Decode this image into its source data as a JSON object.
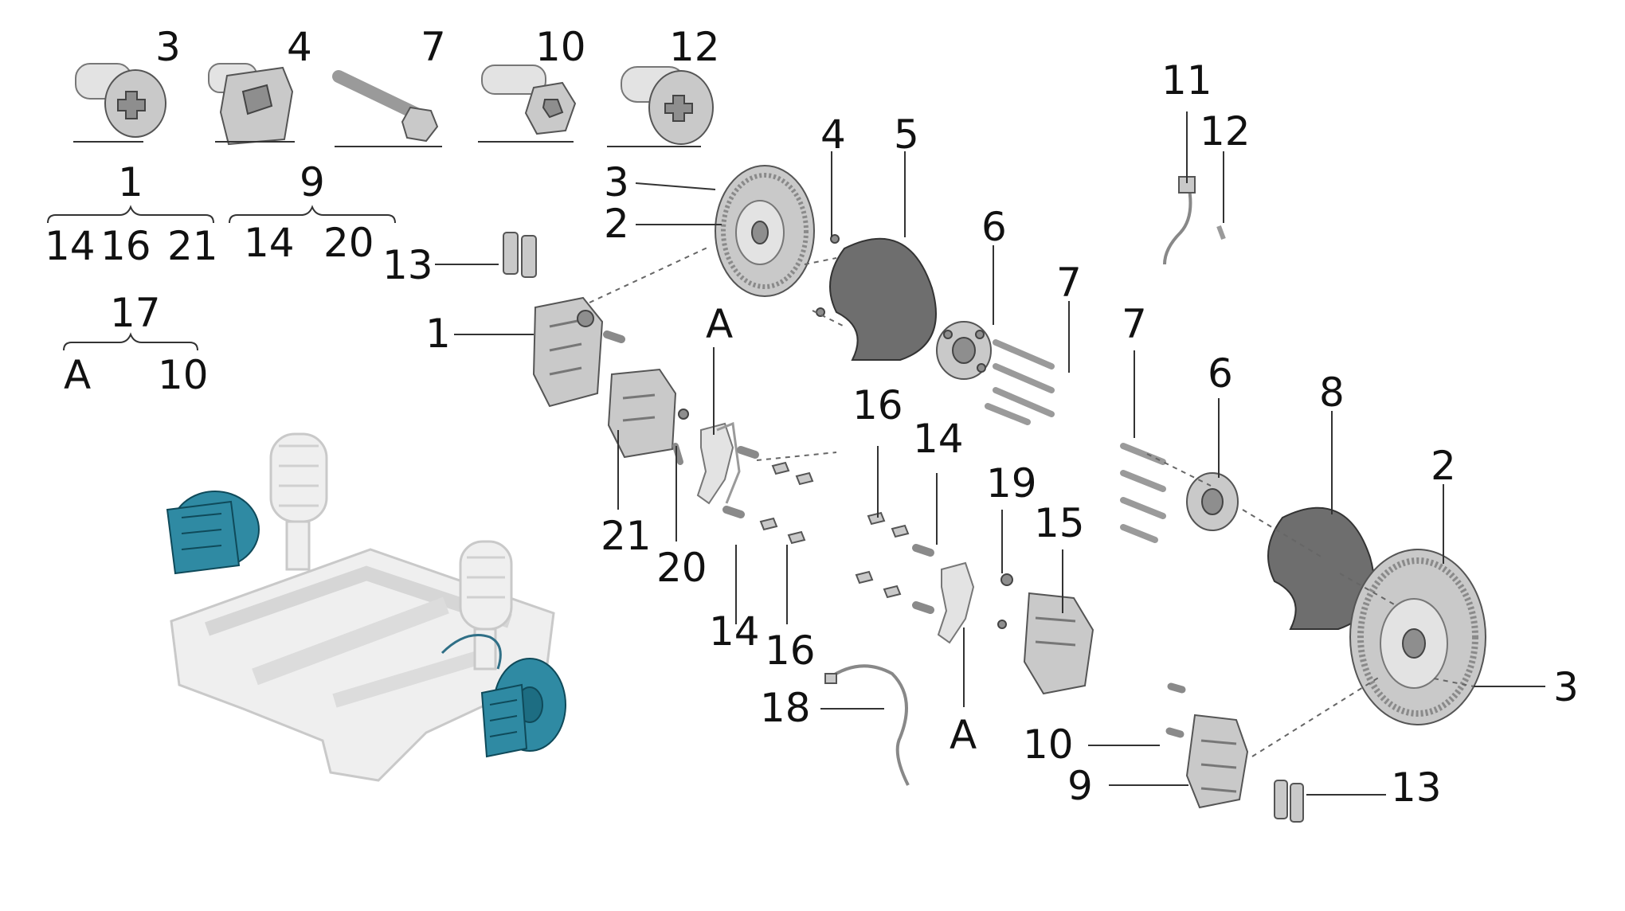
{
  "diagram": {
    "subject": "Front brake system exploded parts diagram",
    "colors": {
      "highlight": "#2f8aa3",
      "part": "#c9c9c9",
      "line": "#333333"
    },
    "legend_groups": [
      {
        "parent": "1",
        "children": [
          "14",
          "16",
          "21"
        ]
      },
      {
        "parent": "9",
        "children": [
          "14",
          "20"
        ]
      },
      {
        "parent": "17",
        "children": [
          "A",
          "10"
        ]
      }
    ],
    "fastener_panel_labels": [
      "3",
      "4",
      "7",
      "10",
      "12"
    ],
    "callouts": {
      "c1": "1",
      "c2a": "2",
      "c2b": "2",
      "c3a": "3",
      "c3b": "3",
      "c4": "4",
      "c5": "5",
      "c6a": "6",
      "c6b": "6",
      "c7a": "7",
      "c7b": "7",
      "c8": "8",
      "c9": "9",
      "c10": "10",
      "c11": "11",
      "c12": "12",
      "c13a": "13",
      "c13b": "13",
      "c14a": "14",
      "c14b": "14",
      "c15": "15",
      "c16a": "16",
      "c16b": "16",
      "c18": "18",
      "c19": "19",
      "c20": "20",
      "c21": "21",
      "cAa": "A",
      "cAb": "A"
    }
  }
}
